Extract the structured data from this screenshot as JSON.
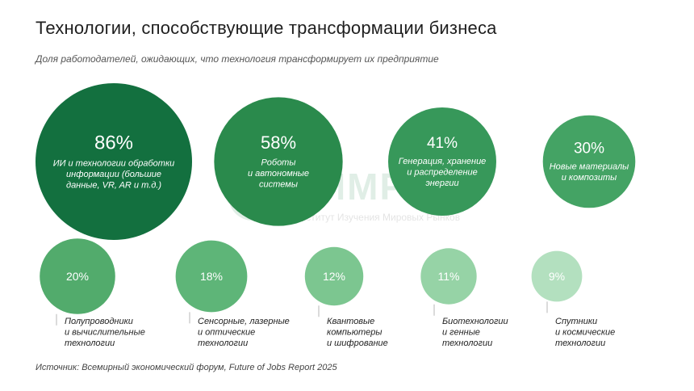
{
  "title": "Технологии, способствующие трансформации бизнеса",
  "subtitle": "Доля работодателей, ожидающих, что технология трансформирует их предприятие",
  "source": "Источник: Всемирный экономический форум, Future of Jobs Report 2025",
  "watermark": {
    "main": "ИИМР",
    "sub": "Институт Изучения Мировых Рынков"
  },
  "chart_data": {
    "type": "bubble",
    "title": "Технологии, способствующие трансформации бизнеса",
    "unit": "%",
    "items": [
      {
        "label": "ИИ и технологии обработки информации (большие данные, VR, AR и т.д.)",
        "lines": [
          "ИИ и технологии обработки",
          "информации (большие",
          "данные, VR, AR и т.д.)"
        ],
        "value": 86,
        "value_label": "86%",
        "color": "#13703f"
      },
      {
        "label": "Роботы и автономные системы",
        "lines": [
          "Роботы",
          "и автономные",
          "системы"
        ],
        "value": 58,
        "value_label": "58%",
        "color": "#2a8a4c"
      },
      {
        "label": "Генерация, хранение и распределение энергии",
        "lines": [
          "Генерация, хранение",
          "и распределение",
          "энергии"
        ],
        "value": 41,
        "value_label": "41%",
        "color": "#37985a"
      },
      {
        "label": "Новые материалы и композиты",
        "lines": [
          "Новые материалы",
          "и композиты"
        ],
        "value": 30,
        "value_label": "30%",
        "color": "#44a364"
      },
      {
        "label": "Полупроводники и вычислительные технологии",
        "lines": [
          "Полупроводники",
          "и вычислительные",
          "технологии"
        ],
        "value": 20,
        "value_label": "20%",
        "color": "#52ab6c"
      },
      {
        "label": "Сенсорные, лазерные и оптические технологии",
        "lines": [
          "Сенсорные, лазерные",
          "и оптические",
          "технологии"
        ],
        "value": 18,
        "value_label": "18%",
        "color": "#5eb578"
      },
      {
        "label": "Квантовые компьютеры и шифрование",
        "lines": [
          "Квантовые",
          "компьютеры",
          "и шифрование"
        ],
        "value": 12,
        "value_label": "12%",
        "color": "#7cc690"
      },
      {
        "label": "Биотехнологии и генные технологии",
        "lines": [
          "Биотехнологии",
          "и генные",
          "технологии"
        ],
        "value": 11,
        "value_label": "11%",
        "color": "#96d3a6"
      },
      {
        "label": "Спутники и космические технологии",
        "lines": [
          "Спутники",
          "и космические",
          "технологии"
        ],
        "value": 9,
        "value_label": "9%",
        "color": "#b3e0bf"
      }
    ]
  }
}
